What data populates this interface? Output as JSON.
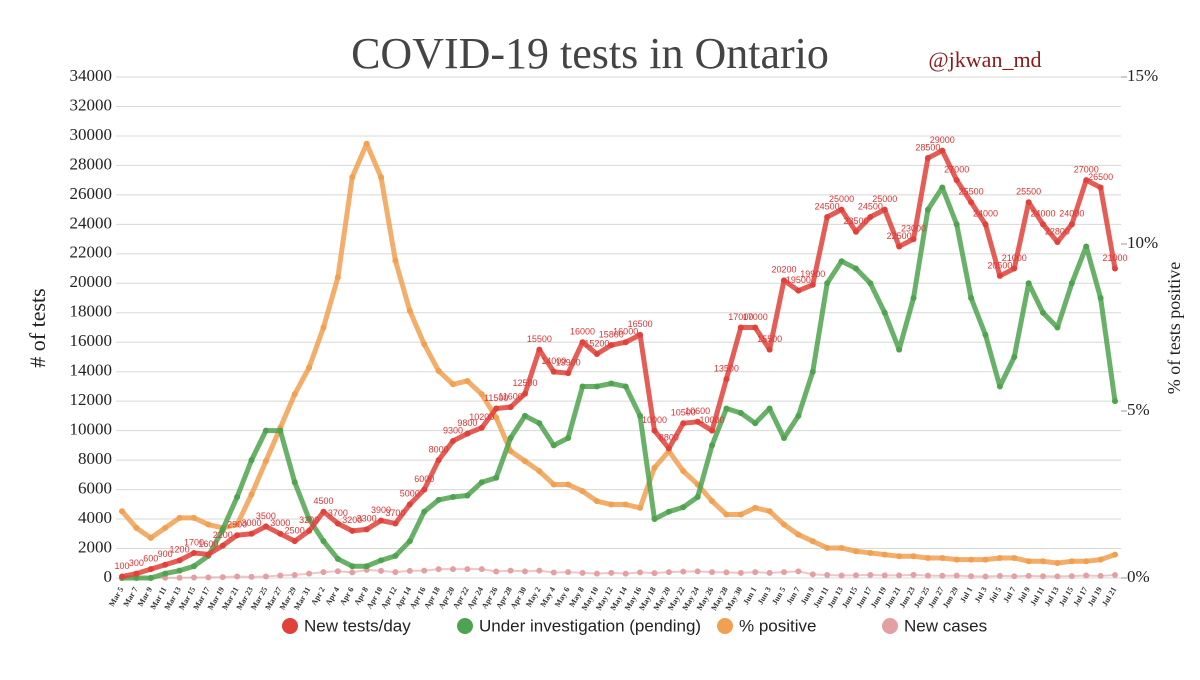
{
  "chart_data": {
    "type": "line",
    "title": "COVID-19 tests in Ontario",
    "annotation": "@jkwan_md",
    "y_label": "# of tests",
    "y2_label": "% of tests positive",
    "categories": [
      "Mar 5",
      "Mar 7",
      "Mar 9",
      "Mar 11",
      "Mar 13",
      "Mar 15",
      "Mar 17",
      "Mar 19",
      "Mar 21",
      "Mar 23",
      "Mar 25",
      "Mar 27",
      "Mar 29",
      "Mar 31",
      "Apr 2",
      "Apr 4",
      "Apr 6",
      "Apr 8",
      "Apr 10",
      "Apr 12",
      "Apr 14",
      "Apr 16",
      "Apr 18",
      "Apr 20",
      "Apr 22",
      "Apr 24",
      "Apr 26",
      "Apr 28",
      "Apr 30",
      "May 2",
      "May 4",
      "May 6",
      "May 8",
      "May 10",
      "May 12",
      "May 14",
      "May 16",
      "May 18",
      "May 20",
      "May 22",
      "May 24",
      "May 26",
      "May 28",
      "May 30",
      "Jun 1",
      "Jun 3",
      "Jun 5",
      "Jun 7",
      "Jun 9",
      "Jun 11",
      "Jun 13",
      "Jun 15",
      "Jun 17",
      "Jun 19",
      "Jun 21",
      "Jun 23",
      "Jun 25",
      "Jun 27",
      "Jun 29",
      "Jul 1",
      "Jul 3",
      "Jul 5",
      "Jul 7",
      "Jul 9",
      "Jul 11",
      "Jul 13",
      "Jul 15",
      "Jul 17",
      "Jul 19",
      "Jul 21"
    ],
    "series": [
      {
        "name": "New tests/day",
        "color": "#e0413a",
        "values": [
          100,
          300,
          600,
          900,
          1200,
          1700,
          1600,
          2200,
          2900,
          3000,
          3500,
          3000,
          2500,
          3200,
          4500,
          3700,
          3200,
          3300,
          3900,
          3700,
          5000,
          6000,
          8000,
          9300,
          9800,
          10200,
          11500,
          11600,
          12500,
          15500,
          14000,
          13900,
          16000,
          15200,
          15800,
          16000,
          16500,
          10000,
          8800,
          10500,
          10600,
          10000,
          13500,
          17000,
          17000,
          15500,
          20200,
          19500,
          19900,
          24500,
          25000,
          23500,
          24500,
          25000,
          22500,
          23000,
          28500,
          29000,
          27000,
          25500,
          24000,
          20500,
          21000,
          25500,
          24000,
          22800,
          24000,
          27000,
          26500,
          21000
        ]
      },
      {
        "name": "Under investigation (pending)",
        "color": "#4fa34f",
        "values": [
          0,
          0,
          0,
          300,
          500,
          800,
          1500,
          3300,
          5500,
          8000,
          10000,
          10000,
          6500,
          4000,
          2500,
          1300,
          800,
          800,
          1200,
          1500,
          2500,
          4500,
          5300,
          5500,
          5600,
          6500,
          6800,
          9500,
          11000,
          10500,
          9000,
          9500,
          13000,
          13000,
          13200,
          13000,
          11000,
          4000,
          4500,
          4800,
          5500,
          9000,
          11500,
          11200,
          10500,
          11500,
          9500,
          11000,
          14000,
          20000,
          21500,
          21000,
          20000,
          18000,
          15500,
          19000,
          25000,
          26500,
          24000,
          19000,
          16500,
          13000,
          15000,
          20000,
          18000,
          17000,
          20000,
          22500,
          19000,
          12000
        ]
      },
      {
        "name": "% positive",
        "color": "#f0a050",
        "axis": "y2",
        "values": [
          2,
          1.5,
          1.2,
          1.5,
          1.8,
          1.8,
          1.6,
          1.5,
          1.6,
          2.5,
          3.5,
          4.5,
          5.5,
          6.3,
          7.5,
          9,
          12,
          13,
          12,
          9.5,
          8,
          7,
          6.2,
          5.8,
          5.9,
          5.5,
          4.8,
          3.8,
          3.5,
          3.2,
          2.8,
          2.8,
          2.6,
          2.3,
          2.2,
          2.2,
          2.1,
          3.3,
          3.8,
          3.2,
          2.8,
          2.3,
          1.9,
          1.9,
          2.1,
          2,
          1.6,
          1.3,
          1.1,
          0.9,
          0.9,
          0.8,
          0.75,
          0.7,
          0.65,
          0.65,
          0.6,
          0.6,
          0.55,
          0.55,
          0.55,
          0.6,
          0.6,
          0.5,
          0.5,
          0.45,
          0.5,
          0.5,
          0.55,
          0.7
        ]
      },
      {
        "name": "New cases",
        "color": "#e3a0a3",
        "values": [
          5,
          10,
          10,
          15,
          20,
          30,
          40,
          60,
          100,
          80,
          100,
          170,
          200,
          300,
          400,
          460,
          380,
          550,
          480,
          400,
          480,
          500,
          600,
          600,
          600,
          600,
          440,
          500,
          450,
          500,
          370,
          400,
          350,
          300,
          350,
          300,
          380,
          330,
          400,
          430,
          450,
          400,
          380,
          350,
          400,
          350,
          400,
          450,
          250,
          200,
          170,
          190,
          200,
          180,
          180,
          210,
          160,
          150,
          160,
          120,
          100,
          140,
          120,
          140,
          120,
          110,
          130,
          170,
          140,
          200
        ]
      }
    ],
    "ylim": [
      0,
      34000
    ],
    "yticks": [
      0,
      2000,
      4000,
      6000,
      8000,
      10000,
      12000,
      14000,
      16000,
      18000,
      20000,
      22000,
      24000,
      26000,
      28000,
      30000,
      32000,
      34000
    ],
    "y2lim": [
      0,
      15
    ],
    "y2ticks": [
      {
        "value": 0,
        "label": "0%"
      },
      {
        "value": 5,
        "label": "5%"
      },
      {
        "value": 10,
        "label": "10%"
      },
      {
        "value": 15,
        "label": "15%"
      }
    ],
    "grid": true,
    "legend": "bottom"
  }
}
